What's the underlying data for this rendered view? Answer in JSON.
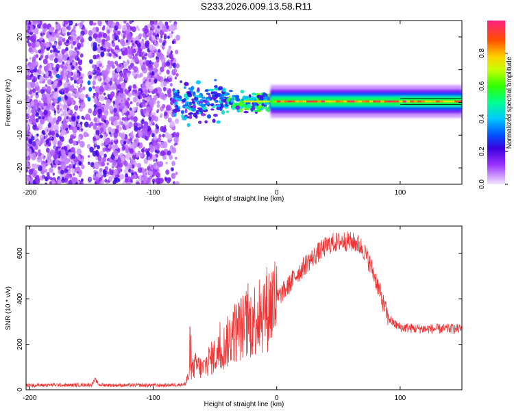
{
  "title": "S233.2026.009.13.58.R11",
  "colors": {
    "snr_line": "#ee3333",
    "axis": "#000000"
  },
  "chart_data": [
    {
      "type": "heatmap",
      "name": "spectrogram",
      "xlabel": "Height of straight line (km)",
      "ylabel": "Frequency (Hz)",
      "xlim": [
        -203,
        150
      ],
      "ylim": [
        -25,
        25
      ],
      "x_ticks": [
        -200,
        -100,
        0,
        100
      ],
      "y_ticks": [
        -20,
        -10,
        0,
        10,
        20
      ],
      "colorbar": {
        "label": "Normalized spectral amplitude",
        "range": [
          0.0,
          1.0
        ],
        "ticks": [
          "0.0",
          "0.2",
          "0.4",
          "0.6",
          "0.8"
        ],
        "tick_values": [
          0.0,
          0.2,
          0.4,
          0.6,
          0.8
        ]
      },
      "regions": [
        {
          "x_from": -203,
          "x_to": -80,
          "description_level": "broadband noise",
          "amplitude": 0.15
        },
        {
          "x_from": -80,
          "x_to": -40,
          "center_freq": 0.5,
          "amplitude": 0.45
        },
        {
          "x_from": -40,
          "x_to": 0,
          "center_freq": 0.5,
          "amplitude": 0.7
        },
        {
          "x_from": 0,
          "x_to": 150,
          "center_freq": 0.3,
          "amplitude": 0.95
        }
      ]
    },
    {
      "type": "line",
      "name": "snr",
      "xlabel": "Height of straight line (km)",
      "ylabel": "SNR (10 * v/v)",
      "xlim": [
        -203,
        150
      ],
      "ylim": [
        0,
        720
      ],
      "x_ticks": [
        -200,
        -100,
        0,
        100
      ],
      "y_ticks": [
        0,
        200,
        400,
        600
      ],
      "series": [
        {
          "name": "SNR",
          "x": [
            -203,
            -190,
            -180,
            -170,
            -160,
            -150,
            -147,
            -144,
            -130,
            -110,
            -100,
            -90,
            -80,
            -74,
            -70,
            -65,
            -60,
            -55,
            -50,
            -45,
            -40,
            -35,
            -30,
            -25,
            -20,
            -15,
            -10,
            -5,
            0,
            5,
            10,
            15,
            20,
            25,
            30,
            35,
            40,
            45,
            50,
            55,
            60,
            65,
            70,
            75,
            80,
            85,
            90,
            95,
            100,
            110,
            120,
            130,
            140,
            150
          ],
          "y": [
            20,
            20,
            22,
            20,
            21,
            22,
            45,
            22,
            20,
            20,
            20,
            20,
            22,
            25,
            80,
            110,
            90,
            130,
            150,
            170,
            210,
            250,
            270,
            280,
            300,
            330,
            350,
            370,
            400,
            430,
            460,
            500,
            530,
            560,
            585,
            610,
            630,
            645,
            650,
            655,
            650,
            645,
            620,
            560,
            490,
            400,
            320,
            290,
            275,
            270,
            268,
            268,
            268,
            268
          ]
        }
      ]
    }
  ]
}
